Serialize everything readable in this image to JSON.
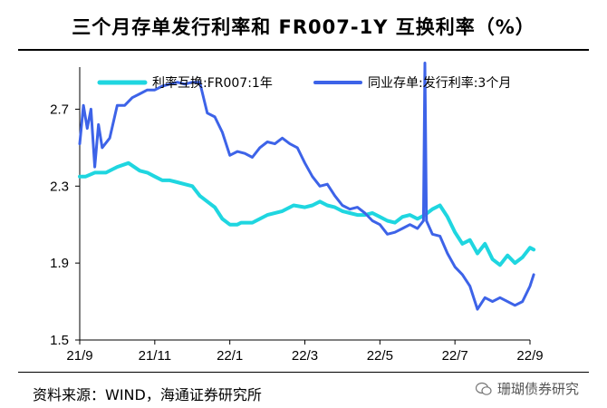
{
  "header": {
    "title": "三个月存单发行利率和 FR007-1Y 互换利率（%）"
  },
  "footer": {
    "source": "资料来源：WIND，海通证券研究所",
    "watermark": "珊瑚债券研究"
  },
  "colors": {
    "swap": "#1fd6e0",
    "ncd": "#3d63e8"
  },
  "chart_data": {
    "type": "line",
    "title": "三个月存单发行利率和 FR007-1Y 互换利率（%）",
    "xlabel": "",
    "ylabel": "",
    "x_ticks": [
      "21/9",
      "21/11",
      "22/1",
      "22/3",
      "22/5",
      "22/7",
      "22/9"
    ],
    "y_ticks": [
      "1.5",
      "1.9",
      "2.3",
      "2.7"
    ],
    "ylim": [
      1.5,
      2.9
    ],
    "legend_position": "top",
    "series": [
      {
        "name": "利率互换:FR007:1年",
        "x": [
          0,
          0.08,
          0.2,
          0.35,
          0.5,
          0.65,
          0.8,
          0.9,
          1.0,
          1.1,
          1.2,
          1.3,
          1.4,
          1.5,
          1.6,
          1.7,
          1.8,
          1.9,
          2.0,
          2.1,
          2.15,
          2.3,
          2.5,
          2.7,
          2.85,
          3.0,
          3.1,
          3.2,
          3.3,
          3.4,
          3.5,
          3.6,
          3.7,
          3.8,
          3.9,
          4.0,
          4.1,
          4.2,
          4.3,
          4.4,
          4.5,
          4.6,
          4.7,
          4.8,
          4.9,
          5.0,
          5.1,
          5.2,
          5.3,
          5.4,
          5.5,
          5.6,
          5.7,
          5.8,
          5.9,
          6.0,
          6.05
        ],
        "values": [
          2.35,
          2.35,
          2.37,
          2.37,
          2.4,
          2.42,
          2.38,
          2.37,
          2.35,
          2.33,
          2.33,
          2.32,
          2.31,
          2.3,
          2.25,
          2.22,
          2.19,
          2.13,
          2.1,
          2.1,
          2.11,
          2.11,
          2.15,
          2.17,
          2.2,
          2.19,
          2.2,
          2.22,
          2.2,
          2.19,
          2.17,
          2.16,
          2.15,
          2.15,
          2.16,
          2.14,
          2.12,
          2.11,
          2.14,
          2.15,
          2.13,
          2.15,
          2.18,
          2.2,
          2.14,
          2.06,
          2.0,
          2.02,
          1.95,
          2.0,
          1.92,
          1.89,
          1.94,
          1.9,
          1.93,
          1.98,
          1.97
        ]
      },
      {
        "name": "同业存单:发行利率:3个月",
        "x": [
          0,
          0.05,
          0.1,
          0.15,
          0.2,
          0.25,
          0.3,
          0.4,
          0.5,
          0.6,
          0.7,
          0.8,
          0.9,
          1.0,
          1.1,
          1.2,
          1.3,
          1.4,
          1.5,
          1.6,
          1.7,
          1.8,
          1.9,
          2.0,
          2.1,
          2.2,
          2.3,
          2.4,
          2.5,
          2.6,
          2.7,
          2.8,
          2.9,
          3.0,
          3.1,
          3.2,
          3.3,
          3.4,
          3.5,
          3.6,
          3.7,
          3.8,
          3.9,
          4.0,
          4.1,
          4.2,
          4.3,
          4.4,
          4.5,
          4.58,
          4.6,
          4.62,
          4.7,
          4.8,
          4.9,
          5.0,
          5.1,
          5.2,
          5.3,
          5.4,
          5.5,
          5.6,
          5.7,
          5.8,
          5.9,
          6.0,
          6.05
        ],
        "values": [
          2.52,
          2.72,
          2.6,
          2.7,
          2.4,
          2.62,
          2.5,
          2.55,
          2.72,
          2.72,
          2.76,
          2.78,
          2.8,
          2.8,
          2.82,
          2.83,
          2.84,
          2.83,
          2.84,
          2.84,
          2.68,
          2.66,
          2.58,
          2.46,
          2.48,
          2.47,
          2.45,
          2.5,
          2.53,
          2.52,
          2.55,
          2.52,
          2.5,
          2.42,
          2.35,
          2.3,
          2.31,
          2.25,
          2.2,
          2.18,
          2.19,
          2.16,
          2.12,
          2.1,
          2.05,
          2.06,
          2.08,
          2.1,
          2.08,
          2.12,
          2.94,
          2.12,
          2.05,
          2.04,
          1.95,
          1.88,
          1.84,
          1.78,
          1.66,
          1.72,
          1.7,
          1.72,
          1.7,
          1.68,
          1.7,
          1.78,
          1.84
        ]
      }
    ]
  }
}
